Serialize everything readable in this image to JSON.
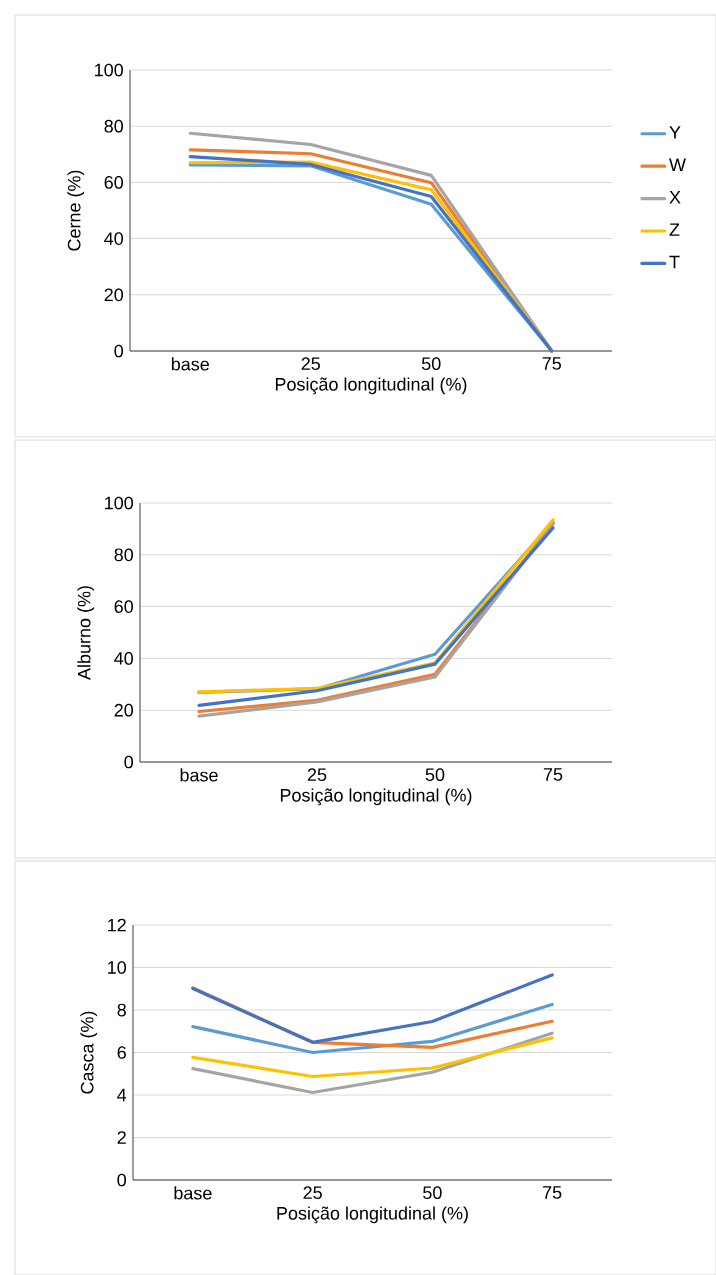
{
  "chart_data": [
    {
      "type": "line",
      "xlabel": "Posição longitudinal (%)",
      "ylabel": "Cerne (%)",
      "categories": [
        "base",
        "25",
        "50",
        "75"
      ],
      "ylim": [
        0,
        100
      ],
      "yticks": [
        0,
        20,
        40,
        60,
        80,
        100
      ],
      "grid": "y",
      "legend": "right",
      "series": [
        {
          "name": "Y",
          "color": "#5b9bd5",
          "values": [
            66.2,
            65.9,
            52.2,
            0
          ]
        },
        {
          "name": "W",
          "color": "#ed7d31",
          "values": [
            71.6,
            70.2,
            59.9,
            0
          ]
        },
        {
          "name": "X",
          "color": "#a5a5a5",
          "values": [
            77.5,
            73.5,
            62.5,
            0
          ]
        },
        {
          "name": "Z",
          "color": "#ffc000",
          "values": [
            67.0,
            67.2,
            57.4,
            0
          ]
        },
        {
          "name": "T",
          "color": "#4472c4",
          "values": [
            69.2,
            66.4,
            55.0,
            0
          ]
        }
      ]
    },
    {
      "type": "line",
      "xlabel": "Posição longitudinal (%)",
      "ylabel": "Alburno (%)",
      "categories": [
        "base",
        "25",
        "50",
        "75"
      ],
      "ylim": [
        0,
        100
      ],
      "yticks": [
        0,
        20,
        40,
        60,
        80,
        100
      ],
      "grid": "y",
      "series": [
        {
          "color": "#5b9bd5",
          "values": [
            26.9,
            28.2,
            41.6,
            92.6
          ]
        },
        {
          "color": "#ed7d31",
          "values": [
            19.5,
            23.8,
            33.9,
            91.9
          ]
        },
        {
          "color": "#a5a5a5",
          "values": [
            17.7,
            23.2,
            32.8,
            91.9
          ]
        },
        {
          "color": "#ffc000",
          "values": [
            27.1,
            28.4,
            38.2,
            93.5
          ]
        },
        {
          "color": "#4472c4",
          "values": [
            21.9,
            27.5,
            37.8,
            90.4
          ]
        }
      ]
    },
    {
      "type": "line",
      "xlabel": "Posição longitudinal (%)",
      "ylabel": "Casca (%)",
      "categories": [
        "base",
        "25",
        "50",
        "75"
      ],
      "ylim": [
        0,
        12
      ],
      "yticks": [
        0,
        2,
        4,
        6,
        8,
        10,
        12
      ],
      "grid": "y",
      "series": [
        {
          "color": "#5b9bd5",
          "values": [
            7.22,
            6.0,
            6.52,
            8.26
          ]
        },
        {
          "color": "#ed7d31",
          "values": [
            9.04,
            6.48,
            6.24,
            7.47
          ]
        },
        {
          "color": "#a5a5a5",
          "values": [
            5.24,
            4.12,
            5.07,
            6.91
          ]
        },
        {
          "color": "#ffc000",
          "values": [
            5.77,
            4.87,
            5.27,
            6.69
          ]
        },
        {
          "color": "#4472c4",
          "values": [
            9.01,
            6.48,
            7.46,
            9.65
          ]
        }
      ]
    }
  ]
}
